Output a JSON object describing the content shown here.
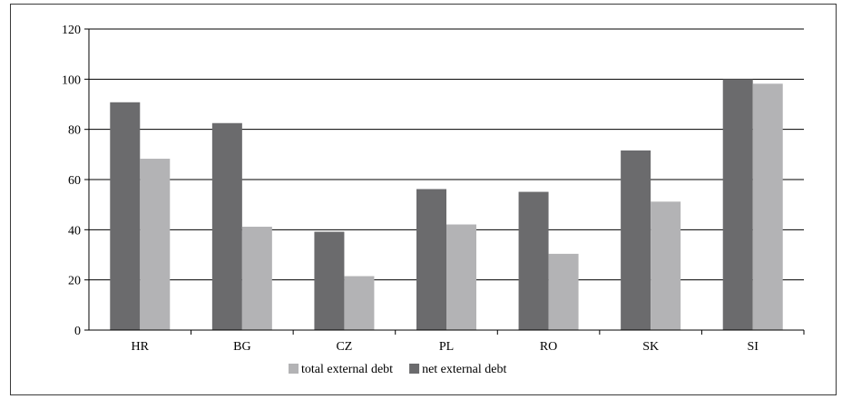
{
  "chart_data": {
    "type": "bar",
    "categories": [
      "HR",
      "BG",
      "CZ",
      "PL",
      "RO",
      "SK",
      "SI"
    ],
    "series": [
      {
        "name": "net external debt",
        "color": "#6b6b6d",
        "values": [
          90.8,
          82.5,
          39.2,
          56.2,
          55.1,
          71.6,
          100
        ]
      },
      {
        "name": "total external debt",
        "color": "#b3b3b5",
        "values": [
          68.3,
          41.2,
          21.5,
          42.1,
          30.4,
          51.2,
          98.2
        ]
      }
    ],
    "yticks": [
      "0",
      "20",
      "40",
      "60",
      "80",
      "100",
      "120"
    ],
    "ylim": [
      0,
      120
    ],
    "grid": true,
    "legend_position": "bottom",
    "legend_order": [
      1,
      0
    ]
  }
}
